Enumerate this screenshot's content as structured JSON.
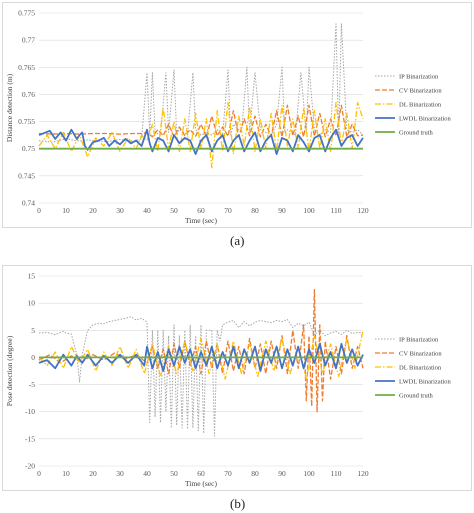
{
  "colors": {
    "ip": "#a5a5a5",
    "cv": "#ed7d31",
    "dl": "#ffc000",
    "lwdl": "#4472c4",
    "gt": "#70ad47",
    "grid": "#d9d9d9"
  },
  "panels": [
    {
      "label": "(a)"
    },
    {
      "label": "(b)"
    }
  ],
  "chart_data": [
    {
      "type": "line",
      "title": "",
      "xlabel": "Time (sec)",
      "ylabel": "Distance detection (m)",
      "xlim": [
        0,
        120
      ],
      "ylim": [
        0.74,
        0.775
      ],
      "x_ticks": [
        "0",
        "10",
        "20",
        "30",
        "40",
        "50",
        "60",
        "70",
        "80",
        "90",
        "100",
        "110",
        "120"
      ],
      "y_ticks": [
        "0.74",
        "0.745",
        "0.75",
        "0.755",
        "0.76",
        "0.765",
        "0.77",
        "0.775"
      ],
      "grid": true,
      "legend": "right",
      "series": [
        {
          "name": "IP Binarization",
          "color": "ip",
          "dash": "1.5,1.5",
          "width": 1,
          "x": [
            0,
            5,
            10,
            15,
            18,
            20,
            25,
            30,
            35,
            38,
            40,
            41,
            42,
            43,
            45,
            47,
            48,
            50,
            51,
            52,
            55,
            57,
            58,
            60,
            62,
            64,
            66,
            68,
            70,
            71,
            72,
            75,
            77,
            78,
            80,
            82,
            84,
            86,
            88,
            90,
            91,
            92,
            95,
            97,
            99,
            100,
            102,
            104,
            106,
            108,
            110,
            111,
            112,
            114,
            116,
            118,
            120
          ],
          "y": [
            0.7515,
            0.7512,
            0.7518,
            0.7514,
            0.7516,
            0.7515,
            0.7513,
            0.7517,
            0.7514,
            0.7518,
            0.764,
            0.7525,
            0.764,
            0.753,
            0.7525,
            0.764,
            0.753,
            0.7645,
            0.7525,
            0.7535,
            0.7525,
            0.764,
            0.7535,
            0.7525,
            0.753,
            0.7525,
            0.7535,
            0.7525,
            0.7645,
            0.7525,
            0.7545,
            0.753,
            0.765,
            0.753,
            0.764,
            0.7535,
            0.753,
            0.7525,
            0.7545,
            0.765,
            0.753,
            0.7535,
            0.7525,
            0.764,
            0.753,
            0.765,
            0.7535,
            0.7525,
            0.7535,
            0.753,
            0.773,
            0.7525,
            0.773,
            0.7535,
            0.753,
            0.7535,
            0.7525
          ]
        },
        {
          "name": "CV Binarization",
          "color": "cv",
          "dash": "5,2",
          "width": 1.3,
          "x": [
            0,
            5,
            10,
            15,
            20,
            25,
            30,
            35,
            38,
            40,
            42,
            44,
            46,
            48,
            50,
            52,
            54,
            56,
            58,
            60,
            62,
            64,
            66,
            68,
            70,
            72,
            74,
            76,
            78,
            80,
            82,
            84,
            86,
            88,
            90,
            92,
            94,
            96,
            98,
            100,
            102,
            104,
            106,
            108,
            110,
            112,
            114,
            116,
            118,
            120
          ],
          "y": [
            0.7528,
            0.7527,
            0.7528,
            0.7527,
            0.7528,
            0.7528,
            0.7527,
            0.7528,
            0.7528,
            0.753,
            0.7522,
            0.7535,
            0.7524,
            0.7545,
            0.7522,
            0.754,
            0.7524,
            0.7535,
            0.7523,
            0.7545,
            0.7522,
            0.756,
            0.7524,
            0.754,
            0.7523,
            0.757,
            0.7522,
            0.7555,
            0.7524,
            0.756,
            0.7522,
            0.7545,
            0.7523,
            0.757,
            0.7522,
            0.758,
            0.7524,
            0.756,
            0.7522,
            0.758,
            0.7523,
            0.7565,
            0.7522,
            0.7555,
            0.7524,
            0.758,
            0.7522,
            0.7545,
            0.7524,
            0.7525
          ]
        },
        {
          "name": "DL Binarization",
          "color": "dl",
          "dash": "6,2,1.5,2",
          "width": 1.3,
          "x": [
            0,
            3,
            6,
            9,
            12,
            15,
            18,
            21,
            24,
            27,
            30,
            33,
            36,
            38,
            40,
            42,
            44,
            46,
            48,
            50,
            52,
            54,
            56,
            58,
            60,
            62,
            64,
            66,
            68,
            70,
            72,
            74,
            76,
            78,
            80,
            82,
            84,
            86,
            88,
            90,
            92,
            94,
            96,
            98,
            100,
            102,
            104,
            106,
            108,
            110,
            112,
            114,
            116,
            118,
            120
          ],
          "y": [
            0.7505,
            0.7525,
            0.75,
            0.753,
            0.7495,
            0.7525,
            0.7485,
            0.752,
            0.7505,
            0.753,
            0.7495,
            0.752,
            0.75,
            0.7525,
            0.7515,
            0.7545,
            0.7495,
            0.7575,
            0.75,
            0.755,
            0.7495,
            0.7555,
            0.7495,
            0.7565,
            0.75,
            0.7555,
            0.7465,
            0.757,
            0.7495,
            0.7585,
            0.749,
            0.756,
            0.7505,
            0.7575,
            0.7495,
            0.7555,
            0.75,
            0.7565,
            0.7495,
            0.758,
            0.7505,
            0.7555,
            0.75,
            0.7575,
            0.7495,
            0.757,
            0.75,
            0.7555,
            0.7495,
            0.7585,
            0.7505,
            0.7565,
            0.75,
            0.7585,
            0.7555
          ]
        },
        {
          "name": "LWDL Binarization",
          "color": "lwdl",
          "dash": "",
          "width": 1.8,
          "x": [
            0,
            4,
            6,
            8,
            10,
            12,
            14,
            15,
            16,
            17,
            18,
            20,
            22,
            24,
            26,
            28,
            30,
            32,
            34,
            36,
            38,
            40,
            41,
            42,
            44,
            46,
            48,
            50,
            52,
            54,
            56,
            58,
            60,
            62,
            64,
            66,
            68,
            70,
            72,
            74,
            76,
            78,
            80,
            82,
            84,
            86,
            88,
            90,
            92,
            94,
            96,
            98,
            100,
            102,
            104,
            106,
            108,
            110,
            112,
            114,
            116,
            118,
            120
          ],
          "y": [
            0.7525,
            0.7533,
            0.7518,
            0.753,
            0.7515,
            0.7535,
            0.7518,
            0.7525,
            0.753,
            0.7505,
            0.7498,
            0.7512,
            0.7515,
            0.752,
            0.7505,
            0.7515,
            0.7508,
            0.7518,
            0.751,
            0.7515,
            0.7505,
            0.7535,
            0.751,
            0.7495,
            0.752,
            0.7515,
            0.7495,
            0.7525,
            0.751,
            0.752,
            0.7515,
            0.749,
            0.7515,
            0.7525,
            0.7495,
            0.7515,
            0.7525,
            0.7495,
            0.7515,
            0.7525,
            0.7495,
            0.7515,
            0.753,
            0.7495,
            0.7515,
            0.7525,
            0.749,
            0.752,
            0.7515,
            0.7495,
            0.7525,
            0.7512,
            0.7495,
            0.752,
            0.7525,
            0.7495,
            0.752,
            0.7535,
            0.7505,
            0.752,
            0.7525,
            0.7505,
            0.752
          ]
        },
        {
          "name": "Ground truth",
          "color": "gt",
          "dash": "",
          "width": 1.8,
          "x": [
            0,
            120
          ],
          "y": [
            0.75,
            0.75
          ]
        }
      ]
    },
    {
      "type": "line",
      "title": "",
      "xlabel": "Time (sec)",
      "ylabel": "Pose detection (degree)",
      "xlim": [
        0,
        120
      ],
      "ylim": [
        -20,
        15
      ],
      "x_ticks": [
        "0",
        "10",
        "20",
        "30",
        "40",
        "50",
        "60",
        "70",
        "80",
        "90",
        "100",
        "110",
        "120"
      ],
      "y_ticks": [
        "-20",
        "-15",
        "-10",
        "-5",
        "0",
        "5",
        "10",
        "15"
      ],
      "grid": true,
      "legend": "right",
      "series": [
        {
          "name": "IP Binarization",
          "color": "ip",
          "dash": "1.5,1.5",
          "width": 1,
          "x": [
            0,
            3,
            6,
            9,
            10,
            12,
            14,
            15,
            16,
            18,
            20,
            22,
            24,
            26,
            28,
            30,
            32,
            34,
            36,
            38,
            40,
            41,
            42,
            43,
            44,
            45,
            46,
            47,
            48,
            49,
            50,
            51,
            52,
            53,
            54,
            55,
            56,
            57,
            58,
            59,
            60,
            61,
            62,
            64,
            65,
            66,
            67,
            68,
            70,
            72,
            74,
            76,
            78,
            80,
            82,
            84,
            86,
            88,
            90,
            92,
            94,
            96,
            98,
            100,
            102,
            104,
            106,
            108,
            110,
            112,
            114,
            116,
            118,
            120
          ],
          "y": [
            4.5,
            4.6,
            4.2,
            4.8,
            4.5,
            4.3,
            0.5,
            -4.5,
            0.5,
            5,
            6,
            6.3,
            6.2,
            6.6,
            6.8,
            7,
            7.2,
            7.5,
            6.9,
            7.2,
            6.5,
            -12,
            5,
            -11,
            5,
            -12,
            5,
            -10,
            4,
            -13,
            6,
            -12.5,
            4,
            -13,
            5,
            -13.2,
            6,
            -13,
            4,
            -13.5,
            6,
            -14,
            5,
            5,
            -14.5,
            5,
            3,
            6,
            6.5,
            6.8,
            5.5,
            6.6,
            5.8,
            6.5,
            6.8,
            6.6,
            6.4,
            6.8,
            6.6,
            7,
            5.5,
            6.3,
            5.8,
            6.5,
            4.2,
            5,
            4,
            4.5,
            4.8,
            4.2,
            5,
            4.4,
            4.6,
            4.5
          ]
        },
        {
          "name": "CV Binarization",
          "color": "cv",
          "dash": "5,2",
          "width": 1.3,
          "x": [
            0,
            4,
            8,
            12,
            16,
            20,
            24,
            28,
            32,
            36,
            40,
            42,
            44,
            46,
            48,
            50,
            52,
            54,
            56,
            58,
            60,
            62,
            64,
            66,
            68,
            70,
            72,
            74,
            76,
            78,
            80,
            82,
            84,
            86,
            88,
            90,
            92,
            94,
            96,
            98,
            99,
            100,
            101,
            102,
            103,
            104,
            105,
            106,
            108,
            110,
            112,
            114,
            116,
            118,
            120
          ],
          "y": [
            -0.5,
            0.5,
            -1,
            0.3,
            -0.8,
            0.5,
            -0.5,
            0.8,
            -0.3,
            0.5,
            -1,
            2,
            -2,
            1.5,
            -3,
            2.5,
            -2,
            3,
            -1.5,
            2,
            -3,
            3,
            -2,
            2.5,
            -3,
            3,
            -2.5,
            2,
            -3,
            3.5,
            -2,
            2.5,
            -3,
            3,
            -2,
            4,
            -3,
            5,
            -2,
            6,
            -8,
            4,
            -9,
            12.5,
            -10,
            6,
            -8,
            3,
            -4,
            2,
            -3,
            4,
            -2,
            2,
            -2
          ]
        },
        {
          "name": "DL Binarization",
          "color": "dl",
          "dash": "6,2,1.5,2",
          "width": 1.3,
          "x": [
            0,
            3,
            6,
            9,
            12,
            15,
            18,
            21,
            24,
            27,
            30,
            33,
            36,
            39,
            42,
            45,
            48,
            51,
            54,
            57,
            60,
            63,
            66,
            69,
            72,
            75,
            78,
            81,
            84,
            87,
            90,
            93,
            96,
            99,
            102,
            105,
            108,
            111,
            114,
            117,
            120
          ],
          "y": [
            0,
            -1.5,
            1,
            -2,
            2,
            -1,
            1.5,
            -2.5,
            1,
            -1.5,
            2,
            -2,
            1.5,
            -3,
            2.5,
            -3.5,
            2,
            -3,
            3,
            -2.5,
            3.5,
            -3,
            2.5,
            -4,
            3,
            -3,
            2.5,
            -3.5,
            3,
            -2.5,
            3.5,
            -3,
            2,
            -4,
            4,
            -3,
            2.5,
            -3.5,
            3.5,
            -2,
            5
          ]
        },
        {
          "name": "LWDL Binarization",
          "color": "lwdl",
          "dash": "",
          "width": 1.8,
          "x": [
            0,
            3,
            6,
            9,
            12,
            14,
            16,
            18,
            21,
            24,
            27,
            30,
            33,
            36,
            39,
            40,
            42,
            44,
            46,
            48,
            50,
            52,
            54,
            56,
            58,
            60,
            62,
            64,
            66,
            68,
            70,
            72,
            74,
            76,
            78,
            80,
            82,
            84,
            86,
            88,
            90,
            92,
            94,
            96,
            98,
            100,
            102,
            104,
            106,
            108,
            110,
            112,
            114,
            116,
            118,
            120
          ],
          "y": [
            -1,
            -0.5,
            -2,
            0.5,
            -1.5,
            0.3,
            -1,
            0.5,
            -1.5,
            0.3,
            -1,
            0.5,
            -1,
            0.5,
            -1.5,
            2,
            -2,
            1,
            -2.5,
            1.5,
            -1.5,
            2,
            -1,
            1.5,
            -2,
            1,
            -1.5,
            2,
            -2,
            1,
            -1.5,
            2,
            -2,
            1.5,
            -1,
            2,
            -2.5,
            1.5,
            -1,
            2,
            -2,
            1.5,
            -1.5,
            2,
            -2,
            1.5,
            -1,
            2.5,
            -1.5,
            1,
            -2,
            2.5,
            -1,
            1.5,
            -1.5,
            0.5
          ]
        },
        {
          "name": "Ground truth",
          "color": "gt",
          "dash": "",
          "width": 1.8,
          "x": [
            0,
            120
          ],
          "y": [
            0,
            0
          ]
        }
      ]
    }
  ]
}
